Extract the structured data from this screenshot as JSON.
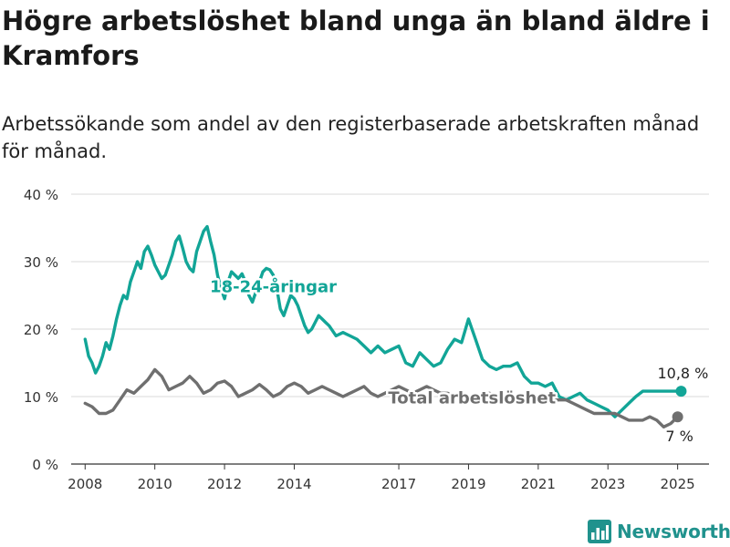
{
  "title": "Högre arbetslöshet bland unga än bland äldre i Kramfors",
  "subtitle": "Arbetssökande som andel av den registerbaserade arbetskraften månad för månad.",
  "brand": "Newsworthy",
  "colors": {
    "youth": "#12a597",
    "total": "#6f6f6f",
    "grid": "#d9d9d9",
    "brand": "#20928d"
  },
  "chart_data": {
    "type": "line",
    "ylim": [
      0,
      40
    ],
    "xlim": [
      2007.6,
      2025.9
    ],
    "y_ticks": [
      {
        "value": 0,
        "label": "0 %"
      },
      {
        "value": 10,
        "label": "10 %"
      },
      {
        "value": 20,
        "label": "20 %"
      },
      {
        "value": 30,
        "label": "30 %"
      },
      {
        "value": 40,
        "label": "40 %"
      }
    ],
    "x_ticks": [
      {
        "value": 2008,
        "label": "2008"
      },
      {
        "value": 2010,
        "label": "2010"
      },
      {
        "value": 2012,
        "label": "2012"
      },
      {
        "value": 2014,
        "label": "2014"
      },
      {
        "value": 2017,
        "label": "2017"
      },
      {
        "value": 2019,
        "label": "2019"
      },
      {
        "value": 2021,
        "label": "2021"
      },
      {
        "value": 2023,
        "label": "2023"
      },
      {
        "value": 2025,
        "label": "2025"
      }
    ],
    "grid": true,
    "series": [
      {
        "name": "18-24-åringar",
        "key": "youth",
        "end_label": "10,8 %",
        "x": [
          2008.0,
          2008.1,
          2008.2,
          2008.3,
          2008.4,
          2008.5,
          2008.6,
          2008.7,
          2008.8,
          2008.9,
          2009.0,
          2009.1,
          2009.2,
          2009.3,
          2009.4,
          2009.5,
          2009.6,
          2009.7,
          2009.8,
          2009.9,
          2010.0,
          2010.1,
          2010.2,
          2010.3,
          2010.4,
          2010.5,
          2010.6,
          2010.7,
          2010.8,
          2010.9,
          2011.0,
          2011.1,
          2011.2,
          2011.3,
          2011.4,
          2011.5,
          2011.6,
          2011.7,
          2011.8,
          2011.9,
          2012.0,
          2012.1,
          2012.2,
          2012.3,
          2012.4,
          2012.5,
          2012.6,
          2012.7,
          2012.8,
          2012.9,
          2013.0,
          2013.1,
          2013.2,
          2013.3,
          2013.4,
          2013.5,
          2013.6,
          2013.7,
          2013.8,
          2013.9,
          2014.0,
          2014.1,
          2014.2,
          2014.3,
          2014.4,
          2014.5,
          2014.6,
          2014.7,
          2014.8,
          2014.9,
          2015.0,
          2015.2,
          2015.4,
          2015.6,
          2015.8,
          2016.0,
          2016.2,
          2016.4,
          2016.6,
          2016.8,
          2017.0,
          2017.2,
          2017.4,
          2017.6,
          2017.8,
          2018.0,
          2018.2,
          2018.4,
          2018.6,
          2018.8,
          2019.0,
          2019.2,
          2019.4,
          2019.6,
          2019.8,
          2020.0,
          2020.2,
          2020.4,
          2020.6,
          2020.8,
          2021.0,
          2021.2,
          2021.4,
          2021.6,
          2021.8,
          2022.0,
          2022.2,
          2022.4,
          2022.6,
          2022.8,
          2023.0,
          2023.2,
          2023.4,
          2023.6,
          2023.8,
          2024.0,
          2024.2,
          2024.4,
          2024.6,
          2024.8,
          2025.0,
          2025.1
        ],
        "values": [
          18.5,
          16.0,
          15.0,
          13.5,
          14.5,
          16.0,
          18.0,
          17.0,
          19.0,
          21.5,
          23.5,
          25.0,
          24.5,
          27.0,
          28.5,
          30.0,
          29.0,
          31.5,
          32.3,
          31.0,
          29.5,
          28.5,
          27.5,
          28.0,
          29.5,
          31.0,
          33.0,
          33.8,
          32.0,
          30.0,
          29.0,
          28.5,
          31.5,
          33.0,
          34.5,
          35.2,
          33.0,
          31.0,
          28.0,
          26.0,
          24.5,
          27.0,
          28.5,
          28.0,
          27.5,
          28.2,
          27.0,
          25.0,
          24.0,
          25.5,
          27.0,
          28.5,
          29.0,
          28.8,
          28.0,
          26.0,
          23.0,
          22.0,
          23.5,
          25.0,
          24.5,
          23.5,
          22.0,
          20.5,
          19.5,
          20.0,
          21.0,
          22.0,
          21.5,
          21.0,
          20.5,
          19.0,
          19.5,
          19.0,
          18.5,
          17.5,
          16.5,
          17.5,
          16.5,
          17.0,
          17.5,
          15.0,
          14.5,
          16.5,
          15.5,
          14.5,
          15.0,
          17.0,
          18.5,
          18.0,
          21.5,
          18.5,
          15.5,
          14.5,
          14.0,
          14.5,
          14.5,
          15.0,
          13.0,
          12.0,
          12.0,
          11.5,
          12.0,
          10.0,
          9.5,
          10.0,
          10.5,
          9.5,
          9.0,
          8.5,
          8.0,
          7.0,
          8.0,
          9.0,
          10.0,
          10.8,
          10.8,
          10.8,
          10.8,
          10.8,
          10.8,
          10.8
        ]
      },
      {
        "name": "Total arbetslöshet",
        "key": "total",
        "end_label": "7 %",
        "x": [
          2008.0,
          2008.2,
          2008.4,
          2008.6,
          2008.8,
          2009.0,
          2009.2,
          2009.4,
          2009.6,
          2009.8,
          2010.0,
          2010.2,
          2010.4,
          2010.6,
          2010.8,
          2011.0,
          2011.2,
          2011.4,
          2011.6,
          2011.8,
          2012.0,
          2012.2,
          2012.4,
          2012.6,
          2012.8,
          2013.0,
          2013.2,
          2013.4,
          2013.6,
          2013.8,
          2014.0,
          2014.2,
          2014.4,
          2014.6,
          2014.8,
          2015.0,
          2015.2,
          2015.4,
          2015.6,
          2015.8,
          2016.0,
          2016.2,
          2016.4,
          2016.6,
          2016.8,
          2017.0,
          2017.2,
          2017.4,
          2017.6,
          2017.8,
          2018.0,
          2018.2,
          2018.4,
          2018.6,
          2018.8,
          2019.0,
          2019.2,
          2019.4,
          2019.6,
          2019.8,
          2020.0,
          2020.2,
          2020.4,
          2020.6,
          2020.8,
          2021.0,
          2021.2,
          2021.4,
          2021.6,
          2021.8,
          2022.0,
          2022.2,
          2022.4,
          2022.6,
          2022.8,
          2023.0,
          2023.2,
          2023.4,
          2023.6,
          2023.8,
          2024.0,
          2024.2,
          2024.4,
          2024.6,
          2024.8,
          2025.0
        ],
        "values": [
          9.0,
          8.5,
          7.5,
          7.5,
          8.0,
          9.5,
          11.0,
          10.5,
          11.5,
          12.5,
          14.0,
          13.0,
          11.0,
          11.5,
          12.0,
          13.0,
          12.0,
          10.5,
          11.0,
          12.0,
          12.3,
          11.5,
          10.0,
          10.5,
          11.0,
          11.8,
          11.0,
          10.0,
          10.5,
          11.5,
          12.0,
          11.5,
          10.5,
          11.0,
          11.5,
          11.0,
          10.5,
          10.0,
          10.5,
          11.0,
          11.5,
          10.5,
          10.0,
          10.5,
          11.0,
          11.5,
          11.0,
          10.5,
          11.0,
          11.5,
          11.0,
          10.5,
          10.5,
          10.0,
          10.0,
          10.0,
          10.0,
          10.0,
          10.5,
          10.0,
          10.0,
          10.0,
          10.0,
          10.0,
          9.5,
          9.5,
          9.5,
          9.5,
          9.5,
          9.5,
          9.0,
          8.5,
          8.0,
          7.5,
          7.5,
          7.5,
          7.5,
          7.0,
          6.5,
          6.5,
          6.5,
          7.0,
          6.5,
          5.5,
          6.0,
          7.0
        ]
      }
    ],
    "annotations": [
      {
        "series": "youth",
        "text": "18-24-åringar",
        "x": 2013.4,
        "y": 25.5
      },
      {
        "series": "total",
        "text": "Total arbetslöshet",
        "x": 2019.1,
        "y": 9.0
      }
    ]
  }
}
